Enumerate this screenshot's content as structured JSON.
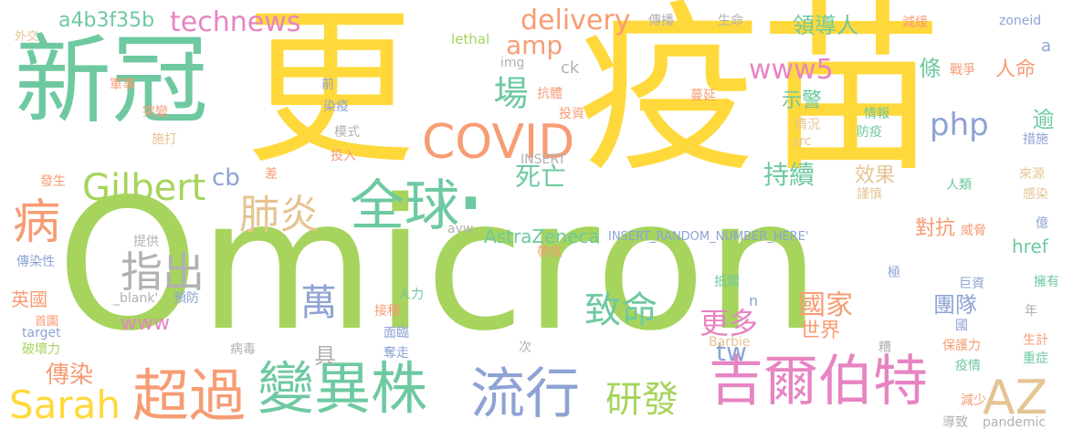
{
  "colors": {
    "yellow": "#ffd93b",
    "green": "#a6d45c",
    "teal": "#6ec9a0",
    "salmon": "#f79c74",
    "pink": "#e784c2",
    "blue": "#8ea3d3",
    "gray": "#b1b1b1",
    "tan": "#e5c493"
  },
  "words": [
    {
      "id": "omicron",
      "text": "Omicron",
      "c": "green"
    },
    {
      "id": "geng",
      "text": "更",
      "c": "yellow"
    },
    {
      "id": "yimiao",
      "text": "疫苗",
      "c": "yellow"
    },
    {
      "id": "xinguan",
      "text": "新冠",
      "c": "teal"
    },
    {
      "id": "dot",
      "text": ".",
      "c": "teal"
    },
    {
      "id": "covid",
      "text": "COVID",
      "c": "salmon"
    },
    {
      "id": "quanqiu",
      "text": "全球",
      "c": "teal"
    },
    {
      "id": "jierbote",
      "text": "吉爾伯特",
      "c": "pink"
    },
    {
      "id": "bianyizhu",
      "text": "變異株",
      "c": "teal"
    },
    {
      "id": "liuxing",
      "text": "流行",
      "c": "blue"
    },
    {
      "id": "chaoguo",
      "text": "超過",
      "c": "salmon"
    },
    {
      "id": "sarah",
      "text": "Sarah",
      "c": "yellow"
    },
    {
      "id": "bing",
      "text": "病",
      "c": "salmon"
    },
    {
      "id": "az",
      "text": "AZ",
      "c": "tan"
    },
    {
      "id": "gilbert",
      "text": "Gilbert",
      "c": "green"
    },
    {
      "id": "feiyan",
      "text": "肺炎",
      "c": "tan"
    },
    {
      "id": "zhichu",
      "text": "指出",
      "c": "gray"
    },
    {
      "id": "yanfa",
      "text": "研發",
      "c": "green"
    },
    {
      "id": "zhiming",
      "text": "致命",
      "c": "teal"
    },
    {
      "id": "wan",
      "text": "萬",
      "c": "blue"
    },
    {
      "id": "chang",
      "text": "場",
      "c": "teal"
    },
    {
      "id": "siwang",
      "text": "死亡",
      "c": "teal"
    },
    {
      "id": "technews",
      "text": "technews",
      "c": "pink"
    },
    {
      "id": "delivery",
      "text": "delivery",
      "c": "salmon"
    },
    {
      "id": "amp",
      "text": "amp",
      "c": "salmon"
    },
    {
      "id": "www5",
      "text": "www5",
      "c": "pink"
    },
    {
      "id": "php",
      "text": "php",
      "c": "blue"
    },
    {
      "id": "chixu",
      "text": "持續",
      "c": "teal"
    },
    {
      "id": "guojia",
      "text": "國家",
      "c": "salmon"
    },
    {
      "id": "gengduo",
      "text": "更多",
      "c": "pink"
    },
    {
      "id": "tw",
      "text": "tw",
      "c": "blue"
    },
    {
      "id": "astrazeneca",
      "text": "AstraZeneca",
      "c": "teal"
    },
    {
      "id": "www",
      "text": "www",
      "c": "pink"
    },
    {
      "id": "chuanran",
      "text": "傳染",
      "c": "salmon"
    },
    {
      "id": "cb",
      "text": "cb",
      "c": "blue"
    },
    {
      "id": "a4b3f35b",
      "text": "a4b3f35b",
      "c": "teal"
    },
    {
      "id": "lingdaoren",
      "text": "領導人",
      "c": "teal"
    },
    {
      "id": "shijie",
      "text": "世界",
      "c": "salmon"
    },
    {
      "id": "tuandui",
      "text": "團隊",
      "c": "blue"
    },
    {
      "id": "duikang",
      "text": "對抗",
      "c": "salmon"
    },
    {
      "id": "shijing",
      "text": "示警",
      "c": "teal"
    },
    {
      "id": "xiaoguo",
      "text": "效果",
      "c": "tan"
    },
    {
      "id": "renming",
      "text": "人命",
      "c": "salmon"
    },
    {
      "id": "tiao",
      "text": "條",
      "c": "teal"
    },
    {
      "id": "yu",
      "text": "逾",
      "c": "teal"
    },
    {
      "id": "href",
      "text": "href",
      "c": "teal"
    },
    {
      "id": "ju",
      "text": "具",
      "c": "gray"
    },
    {
      "id": "yingguo",
      "text": "英國",
      "c": "salmon"
    },
    {
      "id": "insert_rand",
      "text": "INSERT_RANDOM_NUMBER_HERE'",
      "c": "blue"
    },
    {
      "id": "ck",
      "text": "ck",
      "c": "gray"
    },
    {
      "id": "img",
      "text": "img",
      "c": "gray"
    },
    {
      "id": "lethal",
      "text": "lethal",
      "c": "green"
    },
    {
      "id": "chuanbo",
      "text": "傳播",
      "c": "gray"
    },
    {
      "id": "shengming",
      "text": "生命",
      "c": "gray"
    },
    {
      "id": "jianhuan",
      "text": "減緩",
      "c": "salmon"
    },
    {
      "id": "zoneid",
      "text": "zoneid",
      "c": "blue"
    },
    {
      "id": "a_word",
      "text": "a",
      "c": "blue"
    },
    {
      "id": "waijiao",
      "text": "外交",
      "c": "tan"
    },
    {
      "id": "junshi",
      "text": "軍事",
      "c": "salmon"
    },
    {
      "id": "tubian",
      "text": "突變",
      "c": "salmon"
    },
    {
      "id": "shida",
      "text": "施打",
      "c": "tan"
    },
    {
      "id": "qian",
      "text": "前",
      "c": "blue"
    },
    {
      "id": "ranyi",
      "text": "染疫",
      "c": "blue"
    },
    {
      "id": "moshi",
      "text": "模式",
      "c": "gray"
    },
    {
      "id": "touru",
      "text": "投入",
      "c": "salmon"
    },
    {
      "id": "kangti",
      "text": "抗體",
      "c": "salmon"
    },
    {
      "id": "touzi",
      "text": "投資",
      "c": "salmon"
    },
    {
      "id": "insert",
      "text": "INSERT",
      "c": "gray"
    },
    {
      "id": "manyan",
      "text": "蔓延",
      "c": "salmon"
    },
    {
      "id": "qingbao",
      "text": "情報",
      "c": "teal"
    },
    {
      "id": "fangyi",
      "text": "防疫",
      "c": "teal"
    },
    {
      "id": "qingkuang",
      "text": "情況",
      "c": "tan"
    },
    {
      "id": "src",
      "text": "src",
      "c": "tan"
    },
    {
      "id": "zhanzheng",
      "text": "戰爭",
      "c": "salmon"
    },
    {
      "id": "cuoshi",
      "text": "措施",
      "c": "blue"
    },
    {
      "id": "laiyuan",
      "text": "來源",
      "c": "tan"
    },
    {
      "id": "ganran",
      "text": "感染",
      "c": "tan"
    },
    {
      "id": "renlei",
      "text": "人類",
      "c": "teal"
    },
    {
      "id": "jinshen",
      "text": "謹慎",
      "c": "tan"
    },
    {
      "id": "weixie",
      "text": "威脅",
      "c": "salmon"
    },
    {
      "id": "yi",
      "text": "億",
      "c": "blue"
    },
    {
      "id": "fasheng",
      "text": "發生",
      "c": "salmon"
    },
    {
      "id": "cha",
      "text": "差",
      "c": "salmon"
    },
    {
      "id": "avw",
      "text": "avw",
      "c": "gray"
    },
    {
      "id": "tigong",
      "text": "提供",
      "c": "gray"
    },
    {
      "id": "chuanranxing",
      "text": "傳染性",
      "c": "blue"
    },
    {
      "id": "blank",
      "text": "_blank'",
      "c": "gray"
    },
    {
      "id": "yufang",
      "text": "預防",
      "c": "blue"
    },
    {
      "id": "daidai",
      "text": "帶來",
      "c": "salmon"
    },
    {
      "id": "diyu",
      "text": "抵禦",
      "c": "teal"
    },
    {
      "id": "ji",
      "text": "極",
      "c": "blue"
    },
    {
      "id": "juzi",
      "text": "巨資",
      "c": "blue"
    },
    {
      "id": "yongyou",
      "text": "擁有",
      "c": "teal"
    },
    {
      "id": "shoutu",
      "text": "首圖",
      "c": "salmon"
    },
    {
      "id": "renli",
      "text": "人力",
      "c": "teal"
    },
    {
      "id": "jiezhong",
      "text": "接種",
      "c": "salmon"
    },
    {
      "id": "n_word",
      "text": "n",
      "c": "blue"
    },
    {
      "id": "target",
      "text": "target",
      "c": "blue"
    },
    {
      "id": "pohuaili",
      "text": "破壞力",
      "c": "green"
    },
    {
      "id": "bingdu",
      "text": "病毒",
      "c": "gray"
    },
    {
      "id": "mianlin",
      "text": "面臨",
      "c": "blue"
    },
    {
      "id": "duozou",
      "text": "奪走",
      "c": "blue"
    },
    {
      "id": "ci",
      "text": "次",
      "c": "gray"
    },
    {
      "id": "barbie",
      "text": "Barbie",
      "c": "tan"
    },
    {
      "id": "zao",
      "text": "糟",
      "c": "gray"
    },
    {
      "id": "guo",
      "text": "國",
      "c": "blue"
    },
    {
      "id": "baohuli",
      "text": "保護力",
      "c": "salmon"
    },
    {
      "id": "nian",
      "text": "年",
      "c": "gray"
    },
    {
      "id": "shengji",
      "text": "生計",
      "c": "salmon"
    },
    {
      "id": "zhongzheng",
      "text": "重症",
      "c": "teal"
    },
    {
      "id": "yiqing",
      "text": "疫情",
      "c": "teal"
    },
    {
      "id": "jianshao",
      "text": "減少",
      "c": "salmon"
    },
    {
      "id": "daozhi",
      "text": "導致",
      "c": "gray"
    },
    {
      "id": "pandemic",
      "text": "pandemic",
      "c": "gray"
    }
  ]
}
